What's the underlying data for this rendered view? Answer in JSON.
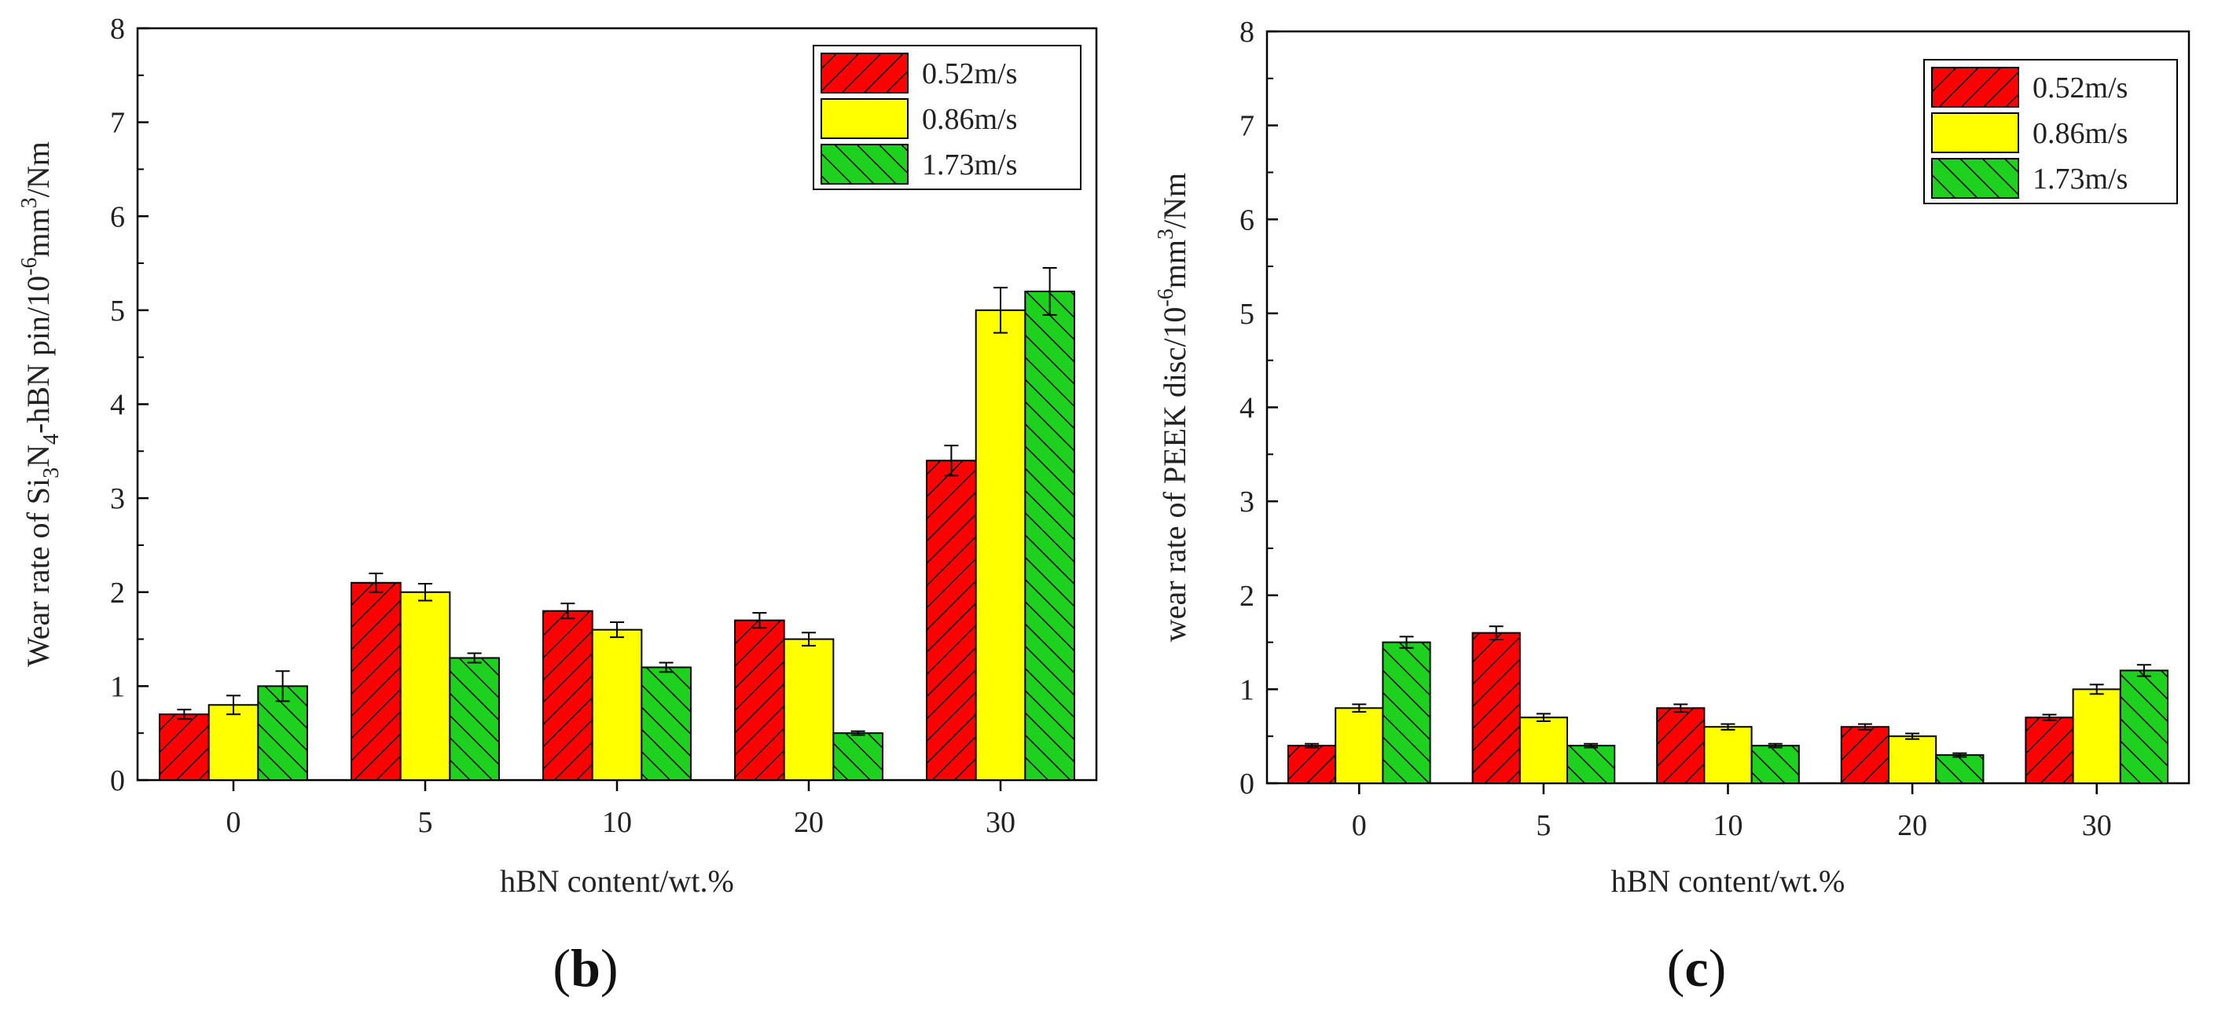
{
  "chart_data": [
    {
      "type": "bar",
      "panel_label": "(b)",
      "panel_letter": "b",
      "title": "",
      "xlabel": "hBN content/wt.%",
      "ylabel": "Wear rate of Si3N4-hBN pin/10-6mm3/Nm",
      "ylabel_parts": [
        {
          "t": "Wear rate of Si"
        },
        {
          "t": "3",
          "sub": true
        },
        {
          "t": "N"
        },
        {
          "t": "4",
          "sub": true
        },
        {
          "t": "-hBN pin/10"
        },
        {
          "t": "-6",
          "sup": true
        },
        {
          "t": "mm"
        },
        {
          "t": "3",
          "sup": true
        },
        {
          "t": "/Nm"
        }
      ],
      "categories": [
        "0",
        "5",
        "10",
        "20",
        "30"
      ],
      "ylim": [
        0,
        8
      ],
      "yticks": [
        "0",
        "1",
        "2",
        "3",
        "4",
        "5",
        "6",
        "7",
        "8"
      ],
      "legend_position": "top-right",
      "series": [
        {
          "name": "0.52m/s",
          "color": "#ff0000",
          "hatch": "forward",
          "values": [
            0.7,
            2.1,
            1.8,
            1.7,
            3.4
          ],
          "errors": [
            0.05,
            0.1,
            0.08,
            0.08,
            0.16
          ]
        },
        {
          "name": "0.86m/s",
          "color": "#ffff00",
          "hatch": "none",
          "values": [
            0.8,
            2.0,
            1.6,
            1.5,
            5.0
          ],
          "errors": [
            0.1,
            0.09,
            0.08,
            0.07,
            0.24
          ]
        },
        {
          "name": "1.73m/s",
          "color": "#1fd11f",
          "hatch": "backward",
          "values": [
            1.0,
            1.3,
            1.2,
            0.5,
            5.2
          ],
          "errors": [
            0.16,
            0.05,
            0.05,
            0.02,
            0.25
          ]
        }
      ]
    },
    {
      "type": "bar",
      "panel_label": "(c)",
      "panel_letter": "c",
      "title": "",
      "xlabel": "hBN content/wt.%",
      "ylabel": "wear rate of PEEK disc/10-6mm3/Nm",
      "ylabel_parts": [
        {
          "t": "wear rate of PEEK disc/10"
        },
        {
          "t": "-6",
          "sup": true
        },
        {
          "t": "mm"
        },
        {
          "t": "3",
          "sup": true
        },
        {
          "t": "/Nm"
        }
      ],
      "categories": [
        "0",
        "5",
        "10",
        "20",
        "30"
      ],
      "ylim": [
        0,
        8
      ],
      "yticks": [
        "0",
        "1",
        "2",
        "3",
        "4",
        "5",
        "6",
        "7",
        "8"
      ],
      "legend_position": "top-right",
      "series": [
        {
          "name": "0.52m/s",
          "color": "#ff0000",
          "hatch": "forward",
          "values": [
            0.4,
            1.6,
            0.8,
            0.6,
            0.7
          ],
          "errors": [
            0.02,
            0.07,
            0.04,
            0.03,
            0.03
          ]
        },
        {
          "name": "0.86m/s",
          "color": "#ffff00",
          "hatch": "none",
          "values": [
            0.8,
            0.7,
            0.6,
            0.5,
            1.0
          ],
          "errors": [
            0.04,
            0.04,
            0.03,
            0.03,
            0.05
          ]
        },
        {
          "name": "1.73m/s",
          "color": "#1fd11f",
          "hatch": "backward",
          "values": [
            1.5,
            0.4,
            0.4,
            0.3,
            1.2
          ],
          "errors": [
            0.06,
            0.02,
            0.02,
            0.02,
            0.06
          ]
        }
      ]
    }
  ]
}
